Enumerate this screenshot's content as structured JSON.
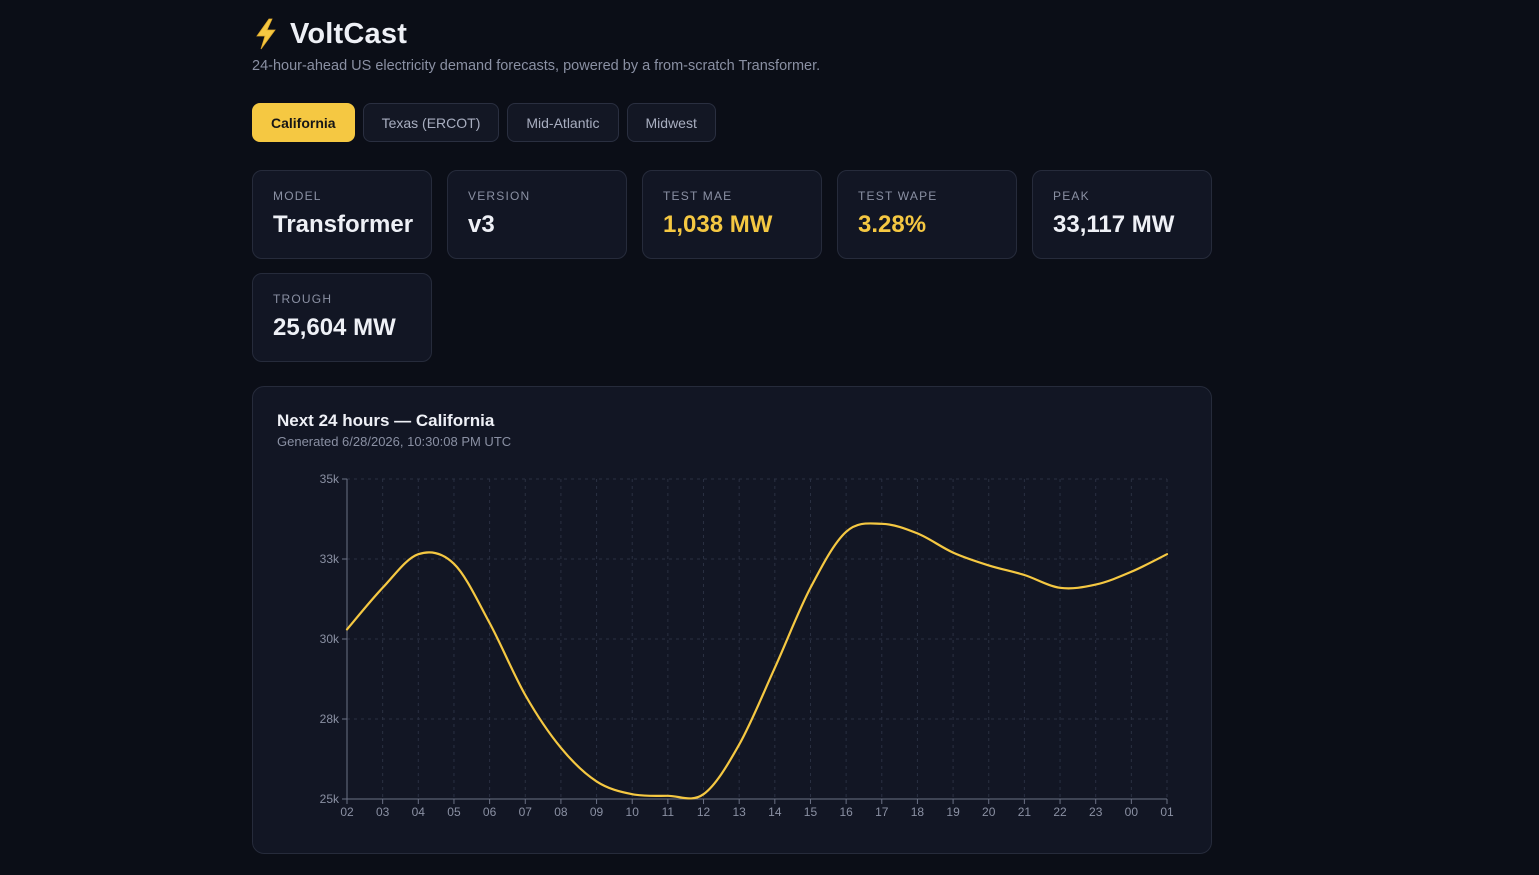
{
  "app": {
    "title": "VoltCast",
    "logo_icon": "lightning-bolt-icon",
    "subtitle": "24-hour-ahead US electricity demand forecasts, powered by a from-scratch Transformer."
  },
  "regions": [
    {
      "label": "California",
      "active": true
    },
    {
      "label": "Texas (ERCOT)",
      "active": false
    },
    {
      "label": "Mid-Atlantic",
      "active": false
    },
    {
      "label": "Midwest",
      "active": false
    }
  ],
  "metrics": {
    "model": {
      "label": "Model",
      "value": "Transformer"
    },
    "version": {
      "label": "Version",
      "value": "v3"
    },
    "test_mae": {
      "label": "Test MAE",
      "value": "1,038 MW"
    },
    "test_wape": {
      "label": "Test WAPE",
      "value": "3.28%"
    },
    "peak": {
      "label": "Peak",
      "value": "33,117 MW"
    },
    "trough": {
      "label": "Trough",
      "value": "25,604 MW"
    }
  },
  "chart_panel": {
    "title": "Next 24 hours — California",
    "generated": "Generated 6/28/2026, 10:30:08 PM UTC"
  },
  "colors": {
    "accent": "#f5c842",
    "background": "#0b0e17",
    "card": "#121624"
  },
  "chart_data": {
    "type": "line",
    "title": "Next 24 hours — California",
    "x": [
      "02",
      "03",
      "04",
      "05",
      "06",
      "07",
      "08",
      "09",
      "10",
      "11",
      "12",
      "13",
      "14",
      "15",
      "16",
      "17",
      "18",
      "19",
      "20",
      "21",
      "22",
      "23",
      "00",
      "01"
    ],
    "y_tick_values": [
      25000,
      27500,
      30000,
      32500,
      35000
    ],
    "y_tick_labels": [
      "25k",
      "28k",
      "30k",
      "33k",
      "35k"
    ],
    "ylim": [
      25000,
      35000
    ],
    "grid": true,
    "series": [
      {
        "color": "#f5c842",
        "values": [
          30300,
          31600,
          32650,
          32350,
          30500,
          28250,
          26600,
          25550,
          25150,
          25100,
          25150,
          26700,
          29100,
          31600,
          33350,
          33600,
          33300,
          32700,
          32300,
          32000,
          31600,
          31700,
          32100,
          32650
        ]
      }
    ]
  }
}
